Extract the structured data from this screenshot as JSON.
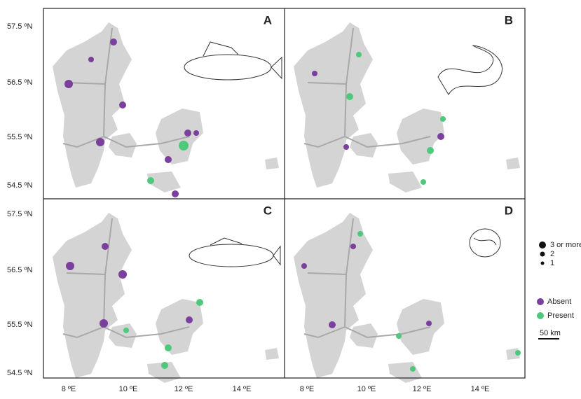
{
  "panels": [
    {
      "label": "A"
    },
    {
      "label": "B"
    },
    {
      "label": "C"
    },
    {
      "label": "D"
    }
  ],
  "lat_labels_top": [
    "57.5 ºN",
    "56.5 ºN",
    "55.5 ºN",
    "54.5 ºN"
  ],
  "lat_labels_bottom": [
    "57.5 ºN",
    "56.5 ºN",
    "55.5 ºN",
    "54.5 ºN"
  ],
  "lon_labels_left": [
    "8 ºE",
    "10 ºE",
    "12 ºE",
    "14 ºE"
  ],
  "lon_labels_right": [
    "8 ºE",
    "10 ºE",
    "12 ºE",
    "14 ºE"
  ],
  "legend": {
    "sizes": [
      "3 or more",
      "2",
      "1"
    ],
    "status": [
      "Absent",
      "Present"
    ],
    "scale": "50 km"
  }
}
